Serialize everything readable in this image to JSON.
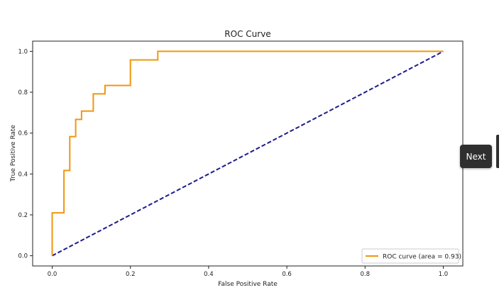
{
  "chart_data": {
    "type": "line",
    "title": "ROC Curve",
    "xlabel": "False Positive Rate",
    "ylabel": "True Positive Rate",
    "xlim": [
      -0.05,
      1.05
    ],
    "ylim": [
      -0.05,
      1.05
    ],
    "x_ticks": [
      0.0,
      0.2,
      0.4,
      0.6,
      0.8,
      1.0
    ],
    "y_ticks": [
      0.0,
      0.2,
      0.4,
      0.6,
      0.8,
      1.0
    ],
    "x_tick_labels": [
      "0.0",
      "0.2",
      "0.4",
      "0.6",
      "0.8",
      "1.0"
    ],
    "y_tick_labels": [
      "0.0",
      "0.2",
      "0.4",
      "0.6",
      "0.8",
      "1.0"
    ],
    "grid": false,
    "legend_position": "lower right",
    "series": [
      {
        "name": "ROC curve (area = 0.93)",
        "color": "#f0960f",
        "style": "solid",
        "x": [
          0.0,
          0.0,
          0.03,
          0.03,
          0.045,
          0.045,
          0.06,
          0.06,
          0.075,
          0.075,
          0.105,
          0.105,
          0.135,
          0.135,
          0.2,
          0.2,
          0.27,
          0.27,
          1.0
        ],
        "y": [
          0.0,
          0.21,
          0.21,
          0.417,
          0.417,
          0.583,
          0.583,
          0.667,
          0.667,
          0.708,
          0.708,
          0.792,
          0.792,
          0.833,
          0.833,
          0.958,
          0.958,
          1.0,
          1.0
        ]
      },
      {
        "color": "#1c1c8c",
        "style": "dashed",
        "x": [
          0.0,
          1.0
        ],
        "y": [
          0.0,
          1.0
        ]
      }
    ]
  },
  "ui": {
    "next_label": "Next"
  }
}
